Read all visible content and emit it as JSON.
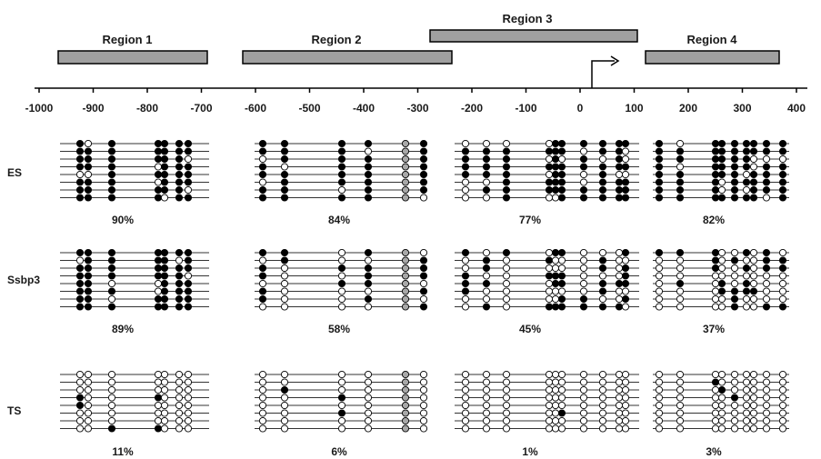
{
  "axis": {
    "ticks": [
      "-1000",
      "-900",
      "-800",
      "-700",
      "-600",
      "-500",
      "-400",
      "-300",
      "-200",
      "-100",
      "0",
      "100",
      "200",
      "300",
      "400"
    ]
  },
  "regions": [
    {
      "label": "Region 1",
      "start": -980,
      "end": -705
    },
    {
      "label": "Region 2",
      "start": -640,
      "end": -258
    },
    {
      "label": "Region 3",
      "start": -298,
      "end": 85
    },
    {
      "label": "Region 4",
      "start": 100,
      "end": 345
    }
  ],
  "tss": {
    "position": 0
  },
  "samples": [
    {
      "label": "ES",
      "percentages": [
        "90%",
        "84%",
        "77%",
        "82%"
      ]
    },
    {
      "label": "Ssbp3",
      "percentages": [
        "89%",
        "58%",
        "45%",
        "37%"
      ]
    },
    {
      "label": "TS",
      "percentages": [
        "11%",
        "6%",
        "1%",
        "3%"
      ]
    }
  ],
  "colors": {
    "region_bar": "#a0a0a0",
    "methylated": "#000000",
    "unmethylated": "#ffffff",
    "undetermined": "#a8a8a8"
  }
}
